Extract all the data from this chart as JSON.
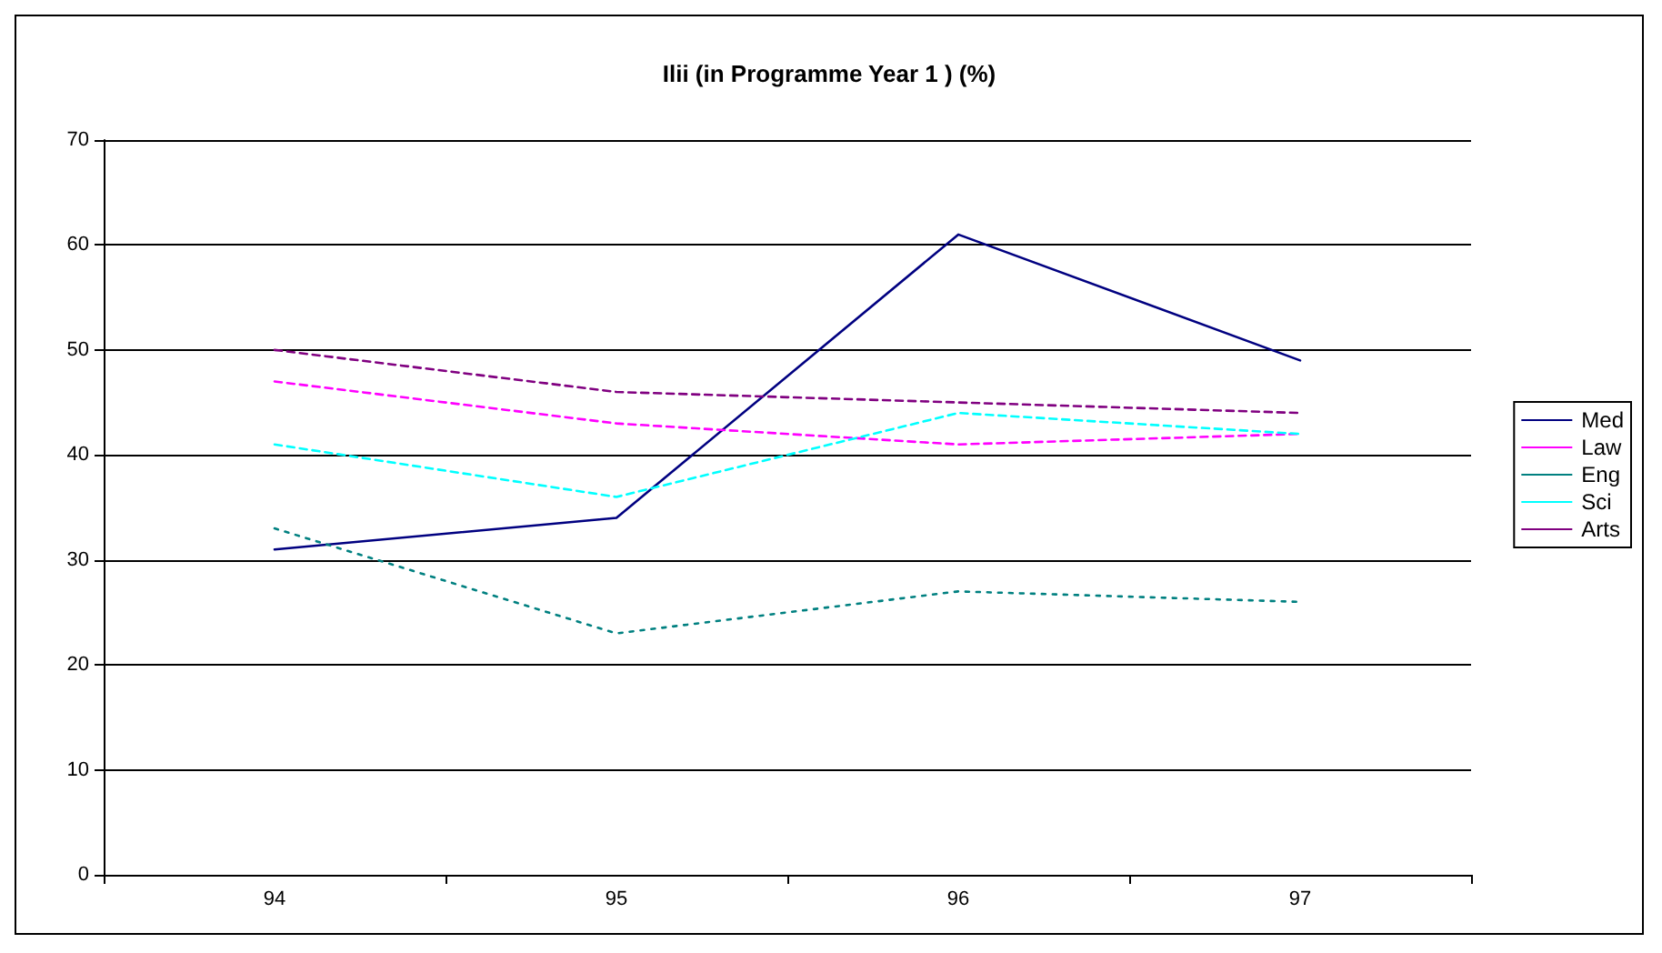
{
  "chart_data": {
    "type": "line",
    "title": "Ilii (in Programme Year 1 ) (%)",
    "categories": [
      "94",
      "95",
      "96",
      "97"
    ],
    "series": [
      {
        "name": "Med",
        "color": "#000080",
        "line_style": "solid",
        "values": [
          31,
          34,
          61,
          49
        ]
      },
      {
        "name": "Law",
        "color": "#ff00ff",
        "line_style": "dashed",
        "values": [
          47,
          43,
          41,
          42
        ]
      },
      {
        "name": "Eng",
        "color": "#008080",
        "line_style": "dotted",
        "values": [
          33,
          23,
          27,
          26
        ]
      },
      {
        "name": "Sci",
        "color": "#00ffff",
        "line_style": "dashed",
        "values": [
          41,
          36,
          44,
          42
        ]
      },
      {
        "name": "Arts",
        "color": "#800080",
        "line_style": "dashed",
        "values": [
          50,
          46,
          45,
          44
        ]
      }
    ],
    "ylim": [
      0,
      70
    ],
    "yticks": [
      0,
      10,
      20,
      30,
      40,
      50,
      60,
      70
    ],
    "grid": "y",
    "legend": "right",
    "marker": "none"
  }
}
